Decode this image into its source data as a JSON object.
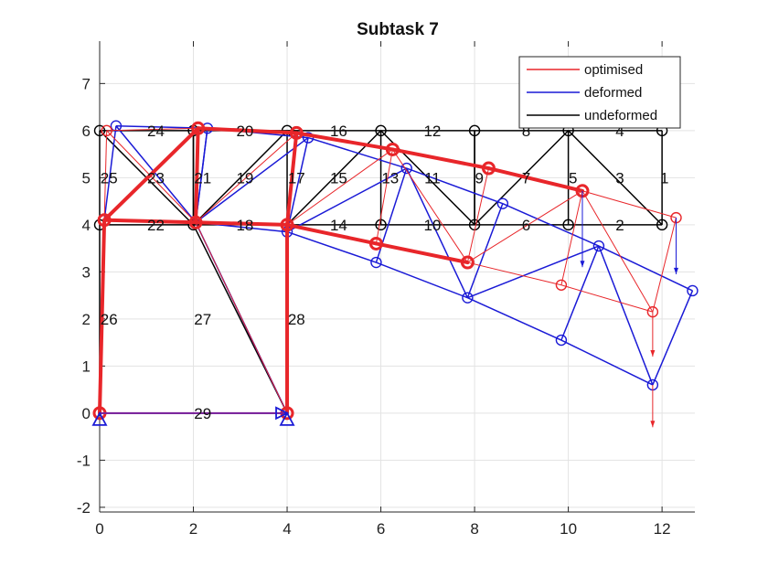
{
  "chart_data": {
    "type": "line",
    "title": "Subtask 7",
    "xlabel": "",
    "ylabel": "",
    "xlim": [
      0,
      12.7
    ],
    "ylim": [
      -2.1,
      7.9
    ],
    "xticks": [
      0,
      2,
      4,
      6,
      8,
      10,
      12
    ],
    "yticks": [
      -2,
      -1,
      0,
      1,
      2,
      3,
      4,
      5,
      6,
      7
    ],
    "xtick_labels": [
      "0",
      "2",
      "4",
      "6",
      "8",
      "10",
      "12"
    ],
    "ytick_labels": [
      "-2",
      "-1",
      "0",
      "1",
      "2",
      "3",
      "4",
      "5",
      "6",
      "7"
    ],
    "grid": true,
    "legend_position": "top-right",
    "legend": [
      {
        "label": "optimised",
        "color": "#e8262a"
      },
      {
        "label": "deformed",
        "color": "#1a1ad6"
      },
      {
        "label": "undeformed",
        "color": "#000000"
      }
    ],
    "colors": {
      "optimised": "#e8262a",
      "deformed": "#1a1ad6",
      "undeformed": "#000000",
      "support": "#1a1ad6",
      "ground_bar": "#7a1f9a"
    },
    "series": [
      {
        "name": "undeformed",
        "nodes": [
          [
            12,
            6
          ],
          [
            12,
            4
          ],
          [
            10,
            6
          ],
          [
            10,
            4
          ],
          [
            8,
            6
          ],
          [
            8,
            4
          ],
          [
            6,
            6
          ],
          [
            6,
            4
          ],
          [
            4,
            6
          ],
          [
            4,
            4
          ],
          [
            2,
            6
          ],
          [
            2,
            4
          ],
          [
            0,
            6
          ],
          [
            0,
            4
          ],
          [
            0,
            0
          ],
          [
            4,
            0
          ]
        ],
        "members": [
          [
            0,
            1
          ],
          [
            0,
            2
          ],
          [
            2,
            3
          ],
          [
            1,
            3
          ],
          [
            2,
            4
          ],
          [
            4,
            5
          ],
          [
            3,
            5
          ],
          [
            4,
            6
          ],
          [
            6,
            7
          ],
          [
            5,
            7
          ],
          [
            6,
            8
          ],
          [
            8,
            9
          ],
          [
            7,
            9
          ],
          [
            8,
            10
          ],
          [
            10,
            11
          ],
          [
            9,
            11
          ],
          [
            10,
            12
          ],
          [
            12,
            13
          ],
          [
            11,
            13
          ],
          [
            14,
            13
          ],
          [
            15,
            9
          ],
          [
            15,
            11
          ],
          [
            14,
            15
          ],
          [
            2,
            1
          ],
          [
            2,
            5
          ],
          [
            4,
            5
          ],
          [
            6,
            5
          ],
          [
            9,
            6
          ],
          [
            8,
            11
          ],
          [
            11,
            10
          ],
          [
            12,
            11
          ]
        ]
      },
      {
        "name": "deformed",
        "nodes": [
          [
            12.65,
            2.6
          ],
          [
            11.8,
            0.6
          ],
          [
            10.65,
            3.55
          ],
          [
            9.85,
            1.55
          ],
          [
            8.6,
            4.45
          ],
          [
            7.85,
            2.45
          ],
          [
            6.55,
            5.2
          ],
          [
            5.9,
            3.2
          ],
          [
            4.45,
            5.85
          ],
          [
            4,
            3.85
          ],
          [
            2.3,
            6.05
          ],
          [
            2.05,
            4.05
          ],
          [
            0.35,
            6.1
          ],
          [
            0.1,
            4.1
          ],
          [
            0,
            0
          ],
          [
            4,
            0
          ]
        ],
        "members": [
          [
            0,
            1
          ],
          [
            0,
            2
          ],
          [
            2,
            3
          ],
          [
            1,
            3
          ],
          [
            2,
            4
          ],
          [
            4,
            5
          ],
          [
            3,
            5
          ],
          [
            4,
            6
          ],
          [
            6,
            7
          ],
          [
            5,
            7
          ],
          [
            6,
            8
          ],
          [
            8,
            9
          ],
          [
            7,
            9
          ],
          [
            8,
            10
          ],
          [
            10,
            11
          ],
          [
            9,
            11
          ],
          [
            10,
            12
          ],
          [
            12,
            13
          ],
          [
            11,
            13
          ],
          [
            14,
            13
          ],
          [
            15,
            9
          ],
          [
            15,
            11
          ],
          [
            14,
            15
          ],
          [
            2,
            1
          ],
          [
            2,
            5
          ],
          [
            6,
            5
          ],
          [
            9,
            6
          ],
          [
            8,
            11
          ],
          [
            11,
            10
          ],
          [
            12,
            11
          ]
        ]
      },
      {
        "name": "optimised",
        "nodes": [
          [
            12.3,
            4.15
          ],
          [
            11.8,
            2.15
          ],
          [
            10.3,
            4.72
          ],
          [
            9.85,
            2.72
          ],
          [
            8.3,
            5.2
          ],
          [
            7.85,
            3.2
          ],
          [
            6.25,
            5.6
          ],
          [
            5.9,
            3.6
          ],
          [
            4.2,
            5.95
          ],
          [
            4,
            4
          ],
          [
            2.1,
            6.05
          ],
          [
            2.05,
            4.05
          ],
          [
            0.15,
            6
          ],
          [
            0.1,
            4.1
          ],
          [
            0,
            0
          ],
          [
            4,
            0
          ]
        ],
        "members": [
          [
            0,
            1
          ],
          [
            0,
            2
          ],
          [
            2,
            3
          ],
          [
            1,
            3
          ],
          [
            2,
            4
          ],
          [
            4,
            5
          ],
          [
            3,
            5
          ],
          [
            4,
            6
          ],
          [
            6,
            7
          ],
          [
            5,
            7
          ],
          [
            6,
            8
          ],
          [
            8,
            9
          ],
          [
            7,
            9
          ],
          [
            8,
            10
          ],
          [
            10,
            11
          ],
          [
            9,
            11
          ],
          [
            10,
            12
          ],
          [
            12,
            13
          ],
          [
            11,
            13
          ],
          [
            14,
            13
          ],
          [
            15,
            9
          ],
          [
            15,
            11
          ],
          [
            14,
            15
          ],
          [
            2,
            1
          ],
          [
            2,
            5
          ],
          [
            6,
            5
          ],
          [
            9,
            6
          ],
          [
            8,
            11
          ],
          [
            11,
            10
          ],
          [
            12,
            11
          ]
        ],
        "thick_members": [
          [
            8,
            10
          ],
          [
            10,
            13
          ],
          [
            13,
            11
          ],
          [
            11,
            9
          ],
          [
            9,
            8
          ],
          [
            8,
            6
          ],
          [
            6,
            4
          ],
          [
            4,
            2
          ],
          [
            9,
            7
          ],
          [
            7,
            5
          ],
          [
            9,
            15
          ],
          [
            13,
            14
          ],
          [
            10,
            11
          ]
        ]
      }
    ],
    "member_labels": [
      {
        "text": "1",
        "x": 12.05,
        "y": 5
      },
      {
        "text": "2",
        "x": 11.1,
        "y": 4
      },
      {
        "text": "3",
        "x": 11.1,
        "y": 5
      },
      {
        "text": "4",
        "x": 11.1,
        "y": 6
      },
      {
        "text": "5",
        "x": 10.1,
        "y": 5
      },
      {
        "text": "6",
        "x": 9.1,
        "y": 4
      },
      {
        "text": "7",
        "x": 9.1,
        "y": 5
      },
      {
        "text": "8",
        "x": 9.1,
        "y": 6
      },
      {
        "text": "9",
        "x": 8.1,
        "y": 5
      },
      {
        "text": "10",
        "x": 7.1,
        "y": 4
      },
      {
        "text": "11",
        "x": 7.1,
        "y": 5
      },
      {
        "text": "12",
        "x": 7.1,
        "y": 6
      },
      {
        "text": "13",
        "x": 6.2,
        "y": 5
      },
      {
        "text": "14",
        "x": 5.1,
        "y": 4
      },
      {
        "text": "15",
        "x": 5.1,
        "y": 5
      },
      {
        "text": "16",
        "x": 5.1,
        "y": 6
      },
      {
        "text": "17",
        "x": 4.2,
        "y": 5
      },
      {
        "text": "18",
        "x": 3.1,
        "y": 4
      },
      {
        "text": "19",
        "x": 3.1,
        "y": 5
      },
      {
        "text": "20",
        "x": 3.1,
        "y": 6
      },
      {
        "text": "21",
        "x": 2.2,
        "y": 5
      },
      {
        "text": "22",
        "x": 1.2,
        "y": 4
      },
      {
        "text": "23",
        "x": 1.2,
        "y": 5
      },
      {
        "text": "24",
        "x": 1.2,
        "y": 6
      },
      {
        "text": "25",
        "x": 0.2,
        "y": 5
      },
      {
        "text": "26",
        "x": 0.2,
        "y": 2
      },
      {
        "text": "27",
        "x": 2.2,
        "y": 2
      },
      {
        "text": "28",
        "x": 4.2,
        "y": 2
      },
      {
        "text": "29",
        "x": 2.2,
        "y": 0
      }
    ],
    "supports": [
      {
        "x": 0,
        "y": 0,
        "kind": "pin"
      },
      {
        "x": 4,
        "y": 0,
        "kind": "pin"
      },
      {
        "x": 4,
        "y": 0,
        "kind": "roller-right"
      }
    ]
  }
}
